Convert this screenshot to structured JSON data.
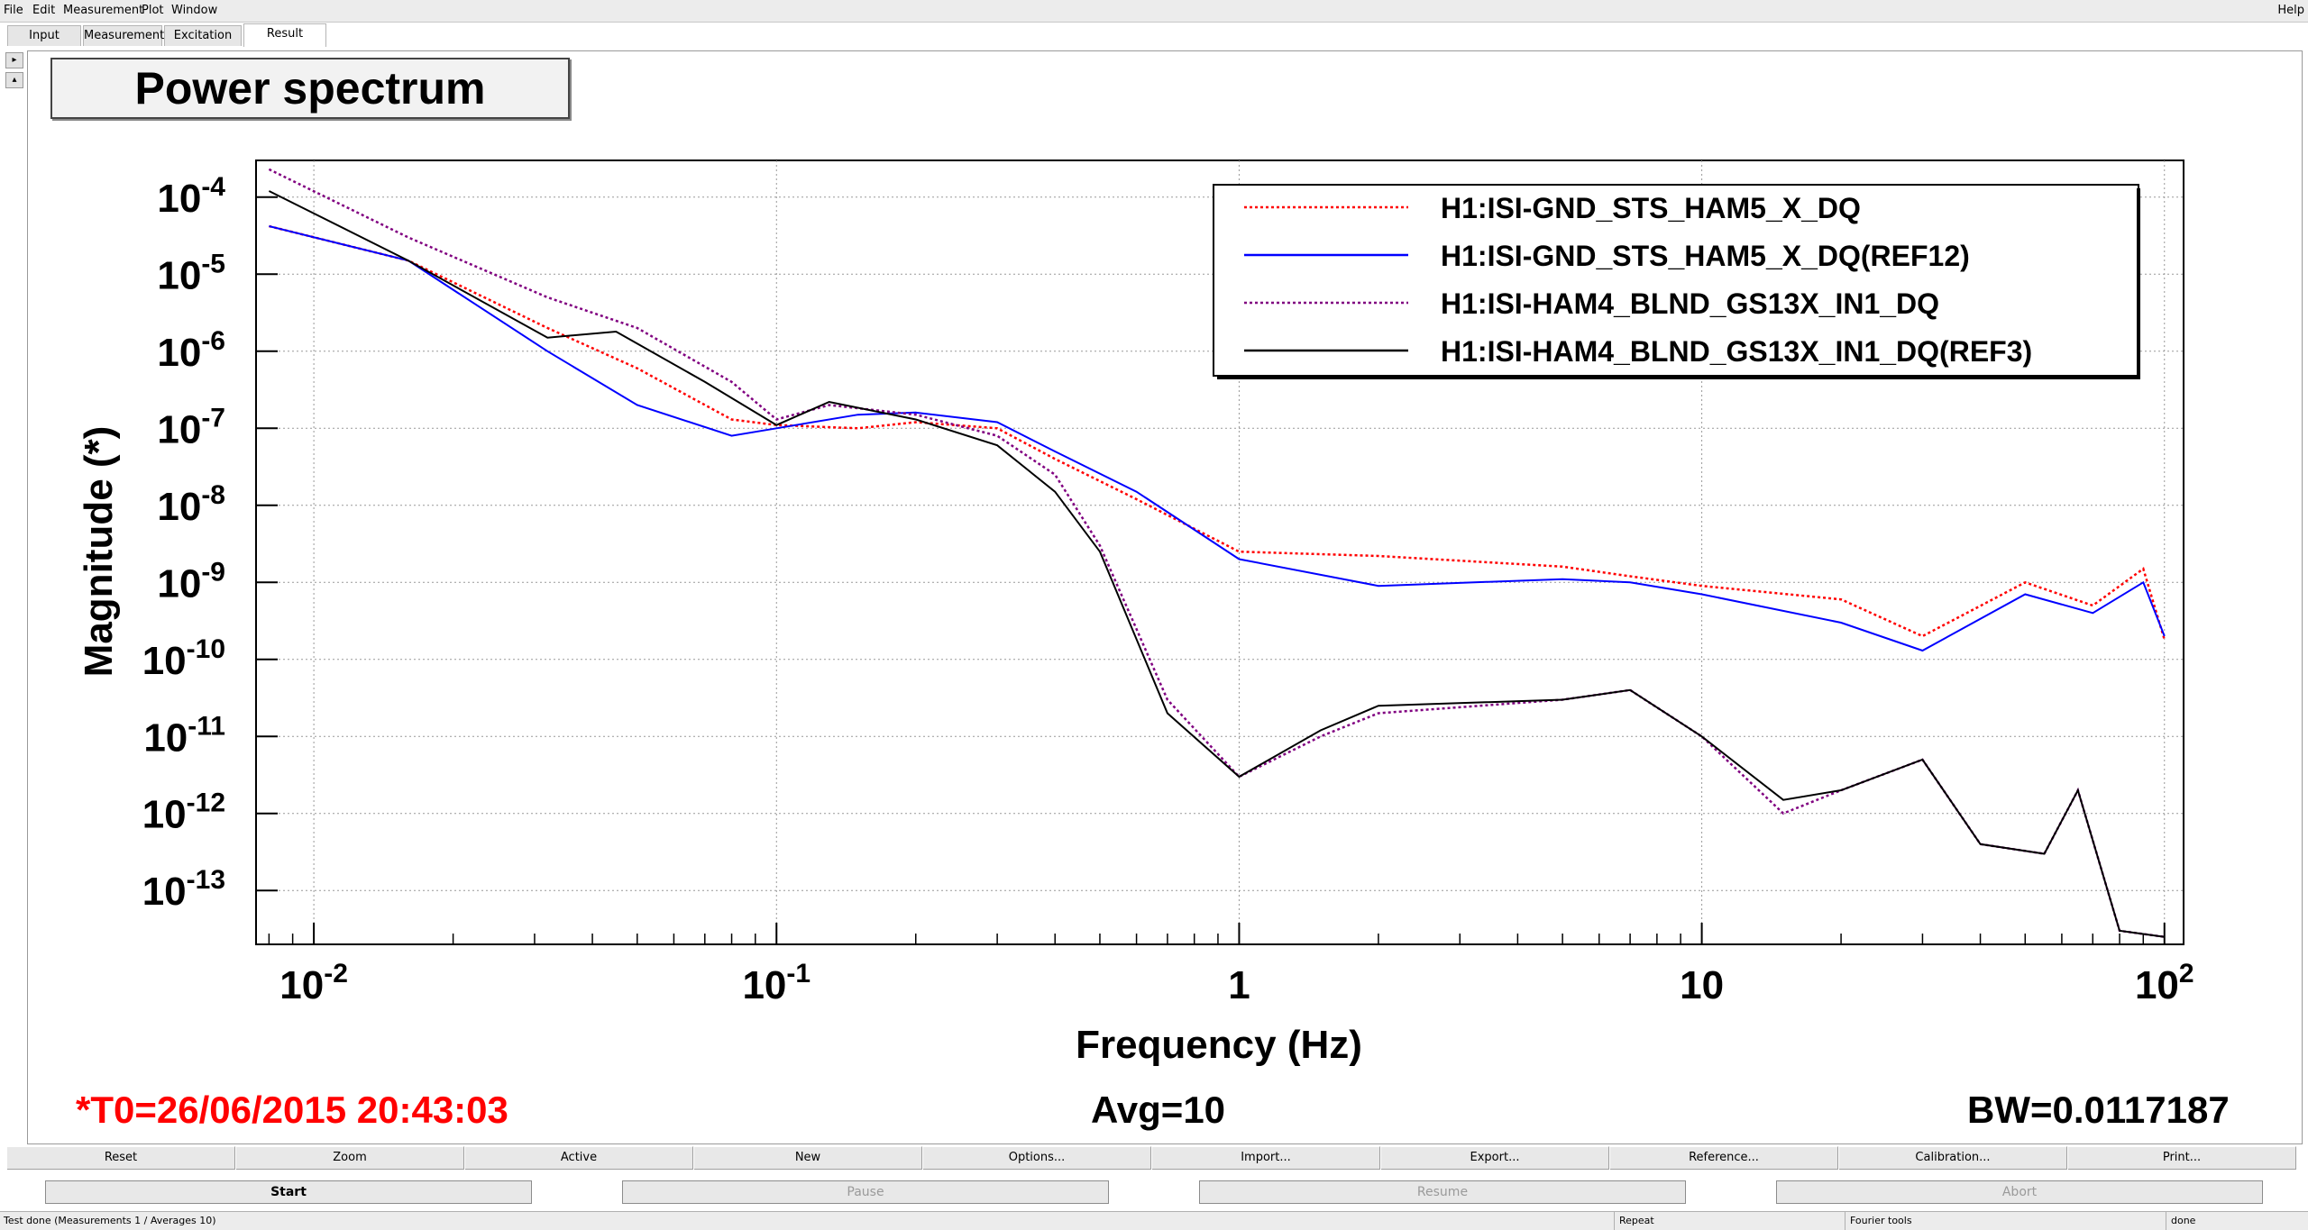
{
  "menubar": {
    "items": [
      "File",
      "Edit",
      "Measurement",
      "Plot",
      "Window"
    ],
    "help": "Help"
  },
  "tabs": [
    {
      "label": "Input",
      "active": false
    },
    {
      "label": "Measurement",
      "active": false
    },
    {
      "label": "Excitation",
      "active": false
    },
    {
      "label": "Result",
      "active": true
    }
  ],
  "plot": {
    "title": "Power spectrum",
    "t0": "*T0=26/06/2015 20:43:03",
    "avg": "Avg=10",
    "bw": "BW=0.0117187"
  },
  "chart_data": {
    "type": "line",
    "xlabel": "Frequency (Hz)",
    "ylabel": "Magnitude (*)",
    "xscale": "log",
    "yscale": "log",
    "xlim": [
      0.0075,
      110
    ],
    "ylim": [
      2e-14,
      0.0003
    ],
    "x_ticks": [
      {
        "value": 0.01,
        "base": "10",
        "exp": "-2"
      },
      {
        "value": 0.1,
        "base": "10",
        "exp": "-1"
      },
      {
        "value": 1,
        "base": "1",
        "exp": ""
      },
      {
        "value": 10,
        "base": "10",
        "exp": ""
      },
      {
        "value": 100,
        "base": "10",
        "exp": "2"
      }
    ],
    "y_ticks": [
      {
        "value": 0.0001,
        "base": "10",
        "exp": "-4"
      },
      {
        "value": 1e-05,
        "base": "10",
        "exp": "-5"
      },
      {
        "value": 1e-06,
        "base": "10",
        "exp": "-6"
      },
      {
        "value": 1e-07,
        "base": "10",
        "exp": "-7"
      },
      {
        "value": 1e-08,
        "base": "10",
        "exp": "-8"
      },
      {
        "value": 1e-09,
        "base": "10",
        "exp": "-9"
      },
      {
        "value": 1e-10,
        "base": "10",
        "exp": "-10"
      },
      {
        "value": 1e-11,
        "base": "10",
        "exp": "-11"
      },
      {
        "value": 1e-12,
        "base": "10",
        "exp": "-12"
      },
      {
        "value": 1e-13,
        "base": "10",
        "exp": "-13"
      }
    ],
    "grid": true,
    "legend_position": "top-right",
    "series": [
      {
        "name": "H1:ISI-GND_STS_HAM5_X_DQ",
        "color": "#ff0000",
        "dash": "dotted",
        "x": [
          0.008,
          0.016,
          0.032,
          0.05,
          0.08,
          0.1,
          0.15,
          0.2,
          0.3,
          0.4,
          0.6,
          1.0,
          2.0,
          5.0,
          7.0,
          10,
          20,
          30,
          50,
          70,
          90,
          100
        ],
        "y": [
          4.2e-05,
          1.5e-05,
          2e-06,
          6e-07,
          1.3e-07,
          1.1e-07,
          1e-07,
          1.2e-07,
          1e-07,
          4e-08,
          1.2e-08,
          2.5e-09,
          2.2e-09,
          1.6e-09,
          1.2e-09,
          9e-10,
          6e-10,
          2e-10,
          1e-09,
          5e-10,
          1.5e-09,
          1.8e-10
        ]
      },
      {
        "name": "H1:ISI-GND_STS_HAM5_X_DQ(REF12)",
        "color": "#0000ff",
        "dash": "solid",
        "x": [
          0.008,
          0.016,
          0.032,
          0.05,
          0.08,
          0.1,
          0.15,
          0.2,
          0.3,
          0.4,
          0.6,
          1.0,
          2.0,
          5.0,
          7.0,
          10,
          20,
          30,
          50,
          70,
          90,
          100
        ],
        "y": [
          4.2e-05,
          1.5e-05,
          1e-06,
          2e-07,
          8e-08,
          1e-07,
          1.5e-07,
          1.6e-07,
          1.2e-07,
          5e-08,
          1.5e-08,
          2e-09,
          9e-10,
          1.1e-09,
          1e-09,
          7e-10,
          3e-10,
          1.3e-10,
          7e-10,
          4e-10,
          1e-09,
          2e-10
        ]
      },
      {
        "name": "H1:ISI-HAM4_BLND_GS13X_IN1_DQ",
        "color": "#800080",
        "dash": "dotted",
        "x": [
          0.008,
          0.016,
          0.032,
          0.05,
          0.08,
          0.1,
          0.13,
          0.2,
          0.3,
          0.4,
          0.5,
          0.7,
          1.0,
          1.5,
          2.0,
          5.0,
          7.0,
          10,
          15,
          20,
          30,
          40,
          55,
          65,
          80,
          100
        ],
        "y": [
          0.00023,
          3e-05,
          5e-06,
          2e-06,
          4e-07,
          1.3e-07,
          2e-07,
          1.5e-07,
          8e-08,
          2.5e-08,
          3e-09,
          3e-11,
          3e-12,
          1e-11,
          2e-11,
          3e-11,
          4e-11,
          1e-11,
          1e-12,
          2e-12,
          5e-12,
          4e-13,
          3e-13,
          2e-12,
          3e-14,
          2.5e-14
        ]
      },
      {
        "name": "H1:ISI-HAM4_BLND_GS13X_IN1_DQ(REF3)",
        "color": "#000000",
        "dash": "solid",
        "x": [
          0.008,
          0.016,
          0.032,
          0.045,
          0.07,
          0.1,
          0.13,
          0.2,
          0.3,
          0.4,
          0.5,
          0.7,
          1.0,
          1.5,
          2.0,
          5.0,
          7.0,
          10,
          15,
          20,
          30,
          40,
          55,
          65,
          80,
          100
        ],
        "y": [
          0.00012,
          1.5e-05,
          1.5e-06,
          1.8e-06,
          4e-07,
          1.1e-07,
          2.2e-07,
          1.3e-07,
          6e-08,
          1.5e-08,
          2.5e-09,
          2e-11,
          3e-12,
          1.2e-11,
          2.5e-11,
          3e-11,
          4e-11,
          1e-11,
          1.5e-12,
          2e-12,
          5e-12,
          4e-13,
          3e-13,
          2e-12,
          3e-14,
          2.5e-14
        ]
      }
    ]
  },
  "buttons_row1": [
    "Reset",
    "Zoom",
    "Active",
    "New",
    "Options...",
    "Import...",
    "Export...",
    "Reference...",
    "Calibration...",
    "Print..."
  ],
  "buttons_row2": [
    {
      "label": "Start",
      "enabled": true
    },
    {
      "label": "Pause",
      "enabled": false
    },
    {
      "label": "Resume",
      "enabled": false
    },
    {
      "label": "Abort",
      "enabled": false
    }
  ],
  "statusbar": {
    "message": "Test done (Measurements 1 / Averages 10)",
    "repeat": "Repeat",
    "tool": "Fourier tools",
    "state": "done"
  }
}
